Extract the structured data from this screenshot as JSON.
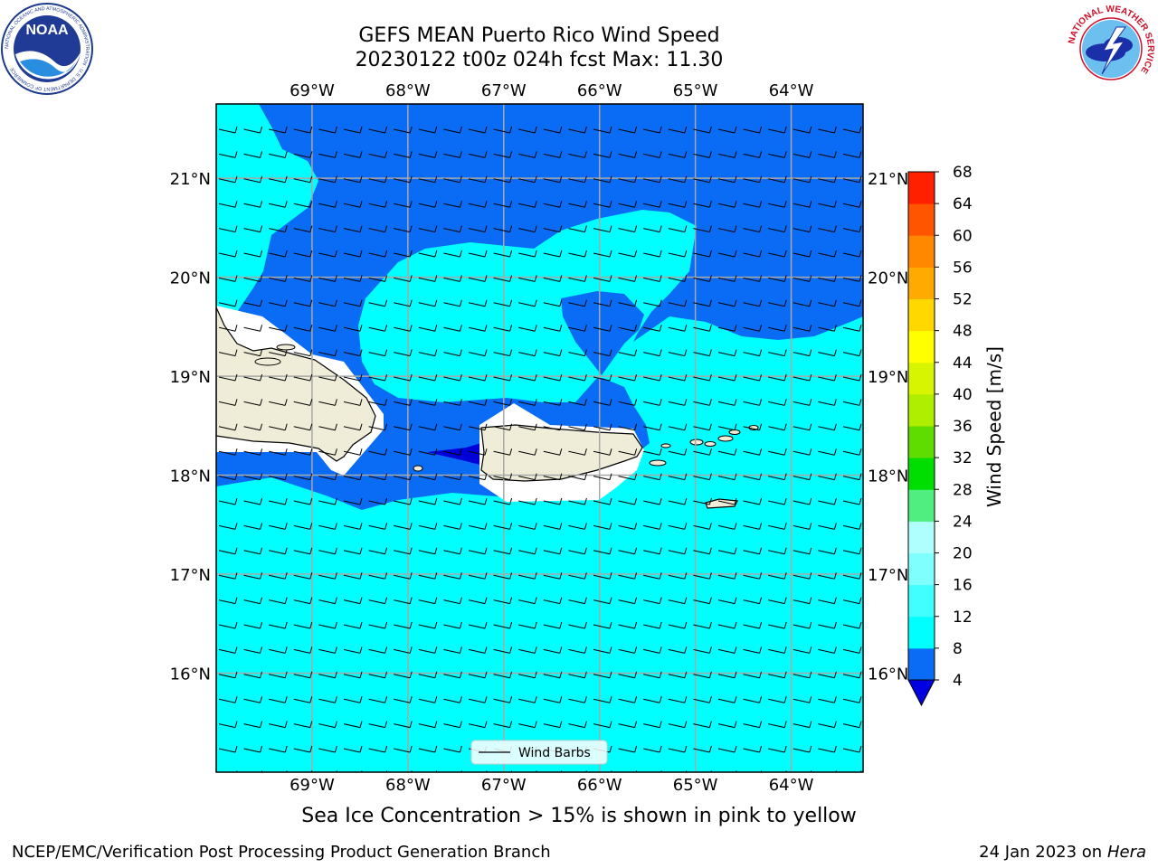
{
  "header": {
    "title_line1": "GEFS MEAN Puerto Rico Wind Speed",
    "title_line2": "20230122 t00z 024h fcst   Max: 11.30"
  },
  "logos": {
    "noaa_text": "NOAA",
    "noaa_ring": "NATIONAL OCEANIC AND ATMOSPHERIC ADMINISTRATION · U.S. DEPARTMENT OF COMMERCE",
    "nws_ring": "NATIONAL WEATHER SERVICE"
  },
  "map": {
    "lon_labels": [
      "69°W",
      "68°W",
      "67°W",
      "66°W",
      "65°W",
      "64°W"
    ],
    "lat_labels": [
      "21°N",
      "20°N",
      "19°N",
      "18°N",
      "17°N",
      "16°N"
    ],
    "lon_range": [
      -70.0,
      -63.25
    ],
    "lat_range": [
      15.0,
      21.75
    ],
    "legend_label": "Wind Barbs",
    "field_colors": {
      "fill_4_8": "#0a6cf5",
      "fill_8_12": "#00ffff",
      "fill_lt_4": "#0000d8",
      "land": "#efedd8",
      "no_data": "#ffffff"
    }
  },
  "colorbar": {
    "label": "Wind Speed [m/s]",
    "ticks": [
      "4",
      "8",
      "12",
      "16",
      "20",
      "24",
      "28",
      "32",
      "36",
      "40",
      "44",
      "48",
      "52",
      "56",
      "60",
      "64",
      "68"
    ],
    "colors": [
      "#0a6cf5",
      "#00ffff",
      "#40ffff",
      "#80ffff",
      "#b0ffff",
      "#50ee80",
      "#00dd00",
      "#60dd00",
      "#b0ee00",
      "#d7f500",
      "#ffff00",
      "#ffd800",
      "#ffaa00",
      "#ff8800",
      "#ff5500",
      "#ff2000",
      "#ff0000"
    ],
    "extend_min_color": "#0000e0"
  },
  "footer": {
    "ice_note": "Sea Ice Concentration > 15% is shown in pink to yellow",
    "credit": "NCEP/EMC/Verification Post Processing Product Generation Branch",
    "date": "24 Jan 2023 on ",
    "machine": "Hera"
  }
}
